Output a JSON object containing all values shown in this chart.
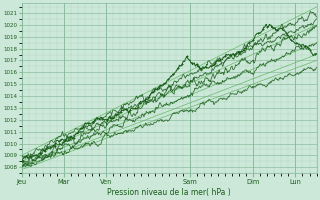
{
  "background_color": "#cce8d8",
  "plot_bg_color": "#cce8d8",
  "grid_minor_color": "#aacfbb",
  "grid_major_color": "#88b89a",
  "line_dark": "#1a5c1a",
  "line_medium": "#2d8c2d",
  "line_light": "#4aaa4a",
  "ylabel_text": "Pression niveau de la mer( hPa )",
  "x_labels": [
    "Jeu",
    "Mar",
    "Ven",
    "Sam",
    "Dim",
    "Lun"
  ],
  "ylim": [
    1007.5,
    1021.8
  ],
  "yticks": [
    1008,
    1009,
    1010,
    1011,
    1012,
    1013,
    1014,
    1015,
    1016,
    1017,
    1018,
    1019,
    1020,
    1021
  ],
  "xlim_days": 7.0,
  "n_points": 500,
  "x_day_ticks": [
    0,
    1,
    2,
    4,
    5.5,
    6.5
  ]
}
